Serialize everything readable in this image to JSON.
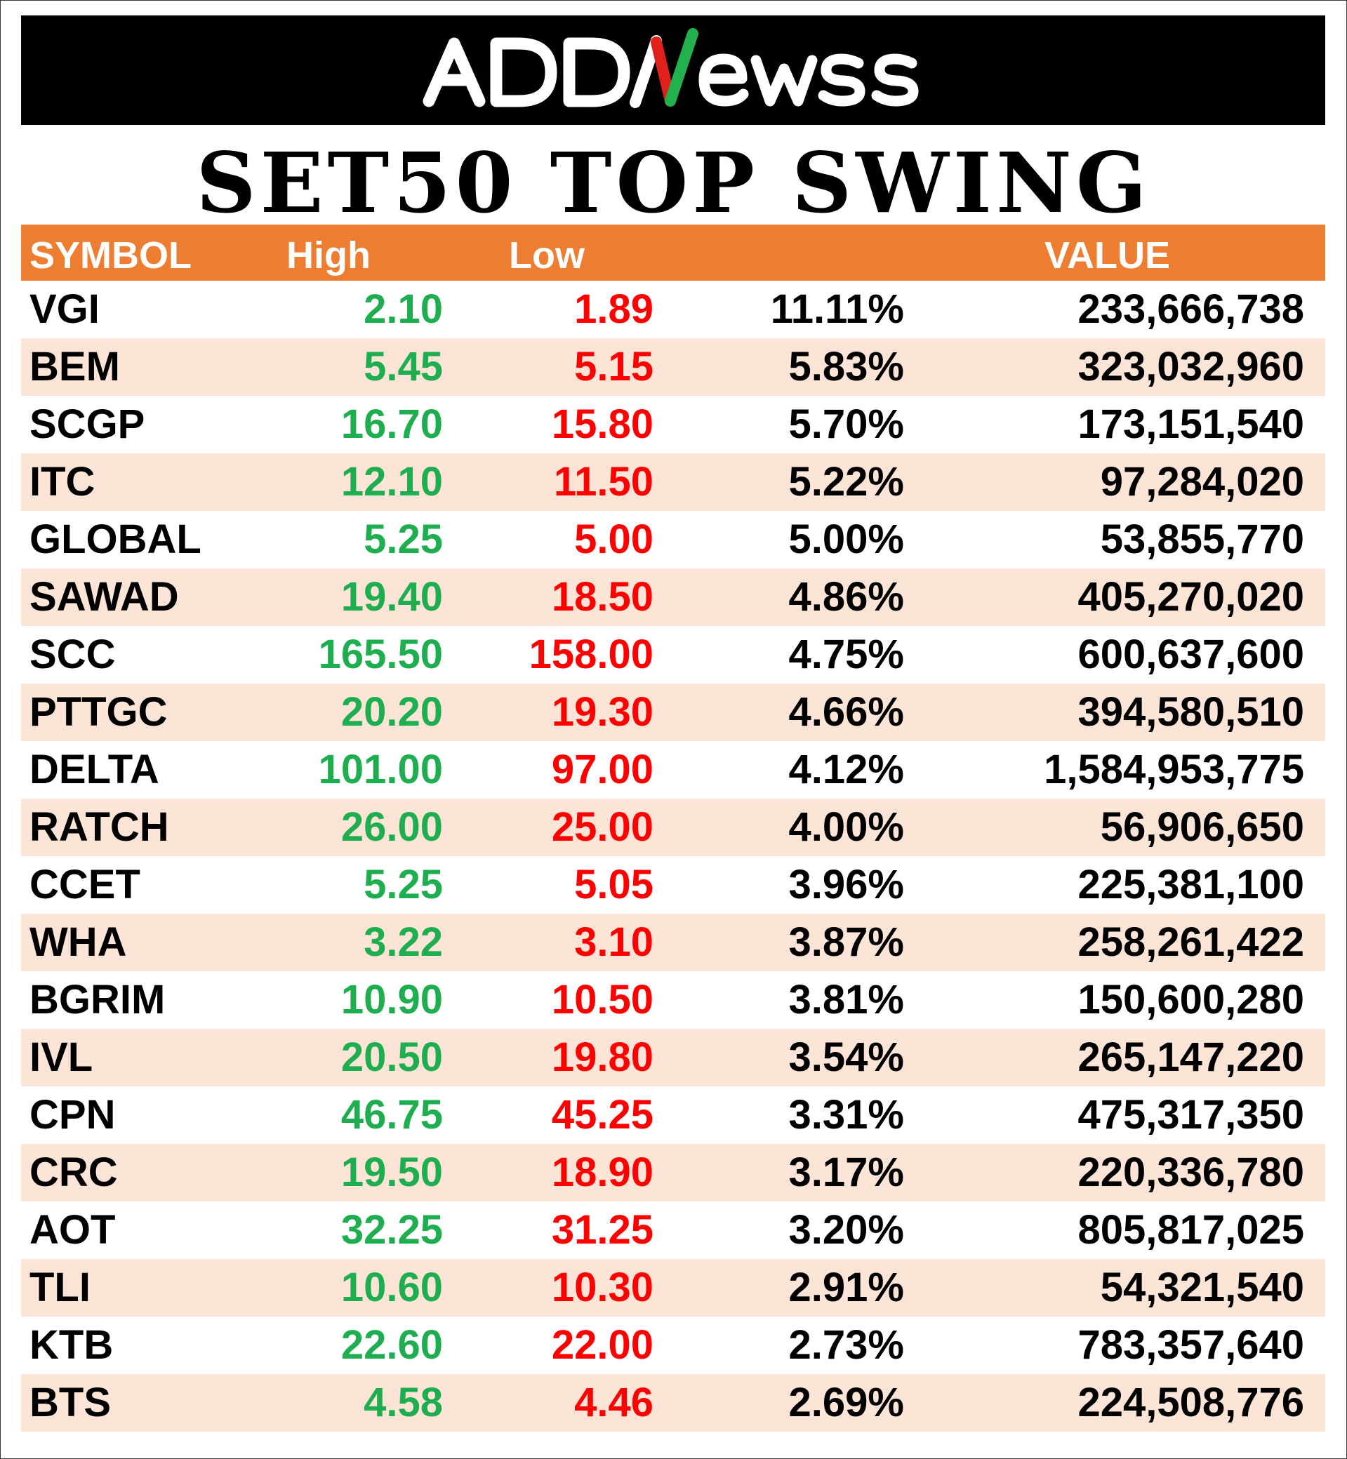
{
  "logo": {
    "text_left": "ADD",
    "text_n": "N",
    "text_right": "ewss",
    "colors": {
      "text": "#ffffff",
      "n_green": "#22b14c",
      "n_red": "#e0201b",
      "background": "#000000"
    }
  },
  "title": "SET50 TOP SWING",
  "colors": {
    "header_bg": "#ed7d31",
    "row_shade": "#fce4d6",
    "high": "#1eae4f",
    "low": "#ff0000"
  },
  "table": {
    "headers": {
      "symbol": "SYMBOL",
      "high": "High",
      "low": "Low",
      "pct": "",
      "value": "VALUE"
    },
    "rows": [
      {
        "symbol": "VGI",
        "high": "2.10",
        "low": "1.89",
        "pct": "11.11%",
        "value": "233,666,738"
      },
      {
        "symbol": "BEM",
        "high": "5.45",
        "low": "5.15",
        "pct": "5.83%",
        "value": "323,032,960"
      },
      {
        "symbol": "SCGP",
        "high": "16.70",
        "low": "15.80",
        "pct": "5.70%",
        "value": "173,151,540"
      },
      {
        "symbol": "ITC",
        "high": "12.10",
        "low": "11.50",
        "pct": "5.22%",
        "value": "97,284,020"
      },
      {
        "symbol": "GLOBAL",
        "high": "5.25",
        "low": "5.00",
        "pct": "5.00%",
        "value": "53,855,770"
      },
      {
        "symbol": "SAWAD",
        "high": "19.40",
        "low": "18.50",
        "pct": "4.86%",
        "value": "405,270,020"
      },
      {
        "symbol": "SCC",
        "high": "165.50",
        "low": "158.00",
        "pct": "4.75%",
        "value": "600,637,600"
      },
      {
        "symbol": "PTTGC",
        "high": "20.20",
        "low": "19.30",
        "pct": "4.66%",
        "value": "394,580,510"
      },
      {
        "symbol": "DELTA",
        "high": "101.00",
        "low": "97.00",
        "pct": "4.12%",
        "value": "1,584,953,775"
      },
      {
        "symbol": "RATCH",
        "high": "26.00",
        "low": "25.00",
        "pct": "4.00%",
        "value": "56,906,650"
      },
      {
        "symbol": "CCET",
        "high": "5.25",
        "low": "5.05",
        "pct": "3.96%",
        "value": "225,381,100"
      },
      {
        "symbol": "WHA",
        "high": "3.22",
        "low": "3.10",
        "pct": "3.87%",
        "value": "258,261,422"
      },
      {
        "symbol": "BGRIM",
        "high": "10.90",
        "low": "10.50",
        "pct": "3.81%",
        "value": "150,600,280"
      },
      {
        "symbol": "IVL",
        "high": "20.50",
        "low": "19.80",
        "pct": "3.54%",
        "value": "265,147,220"
      },
      {
        "symbol": "CPN",
        "high": "46.75",
        "low": "45.25",
        "pct": "3.31%",
        "value": "475,317,350"
      },
      {
        "symbol": "CRC",
        "high": "19.50",
        "low": "18.90",
        "pct": "3.17%",
        "value": "220,336,780"
      },
      {
        "symbol": "AOT",
        "high": "32.25",
        "low": "31.25",
        "pct": "3.20%",
        "value": "805,817,025"
      },
      {
        "symbol": "TLI",
        "high": "10.60",
        "low": "10.30",
        "pct": "2.91%",
        "value": "54,321,540"
      },
      {
        "symbol": "KTB",
        "high": "22.60",
        "low": "22.00",
        "pct": "2.73%",
        "value": "783,357,640"
      },
      {
        "symbol": "BTS",
        "high": "4.58",
        "low": "4.46",
        "pct": "2.69%",
        "value": "224,508,776"
      }
    ]
  }
}
